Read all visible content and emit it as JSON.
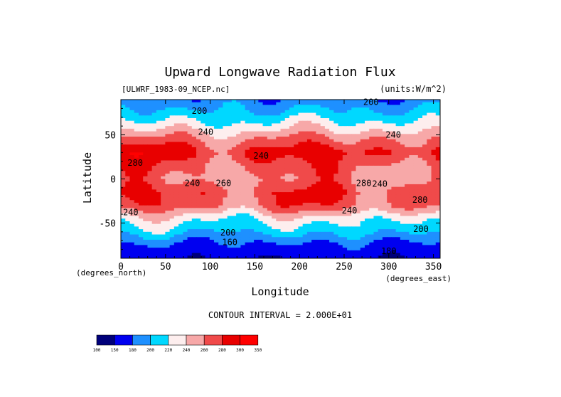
{
  "chart_data": {
    "type": "heatmap",
    "title": "Upward Longwave Radiation Flux",
    "file_label": "[ULWRF_1983-09_NCEP.nc]",
    "units_label": "(units:W/m^2)",
    "xlabel": "Longitude",
    "ylabel": "Latitude",
    "x_units": "(degrees_east)",
    "y_units": "(degrees_north)",
    "xlim": [
      0,
      357.5
    ],
    "ylim": [
      -90,
      90
    ],
    "x_ticks": [
      0,
      50,
      100,
      150,
      200,
      250,
      300,
      350
    ],
    "y_ticks": [
      -50,
      0,
      50
    ],
    "contour_interval_text": "CONTOUR INTERVAL = 2.000E+01",
    "levels": [
      100,
      150,
      180,
      200,
      220,
      240,
      260,
      280,
      300,
      350
    ],
    "colors": [
      "#00007a",
      "#0000f0",
      "#1e90ff",
      "#00d8ff",
      "#fdeeee",
      "#f7a8a8",
      "#f04a4a",
      "#e80000",
      "#ff0000"
    ],
    "latitude_profile": [
      {
        "lat": 90,
        "value": 185
      },
      {
        "lat": 75,
        "value": 205
      },
      {
        "lat": 60,
        "value": 230
      },
      {
        "lat": 45,
        "value": 262
      },
      {
        "lat": 30,
        "value": 285
      },
      {
        "lat": 15,
        "value": 268
      },
      {
        "lat": 0,
        "value": 258
      },
      {
        "lat": -15,
        "value": 275
      },
      {
        "lat": -30,
        "value": 268
      },
      {
        "lat": -45,
        "value": 228
      },
      {
        "lat": -60,
        "value": 205
      },
      {
        "lat": -75,
        "value": 175
      },
      {
        "lat": -90,
        "value": 155
      }
    ],
    "contour_labels": [
      {
        "text": "200",
        "lon": 88,
        "lat": 74
      },
      {
        "text": "200",
        "lon": 280,
        "lat": 84
      },
      {
        "text": "240",
        "lon": 95,
        "lat": 50
      },
      {
        "text": "240",
        "lon": 305,
        "lat": 47
      },
      {
        "text": "240",
        "lon": 157,
        "lat": 23
      },
      {
        "text": "280",
        "lon": 16,
        "lat": 15
      },
      {
        "text": "240",
        "lon": 80,
        "lat": -8
      },
      {
        "text": "260",
        "lon": 115,
        "lat": -8
      },
      {
        "text": "280",
        "lon": 272,
        "lat": -8
      },
      {
        "text": "240",
        "lon": 290,
        "lat": -9
      },
      {
        "text": "280",
        "lon": 335,
        "lat": -27
      },
      {
        "text": "240",
        "lon": 11,
        "lat": -41
      },
      {
        "text": "240",
        "lon": 256,
        "lat": -39
      },
      {
        "text": "200",
        "lon": 120,
        "lat": -64
      },
      {
        "text": "200",
        "lon": 336,
        "lat": -60
      },
      {
        "text": "160",
        "lon": 122,
        "lat": -75
      },
      {
        "text": "180",
        "lon": 300,
        "lat": -85
      }
    ]
  }
}
